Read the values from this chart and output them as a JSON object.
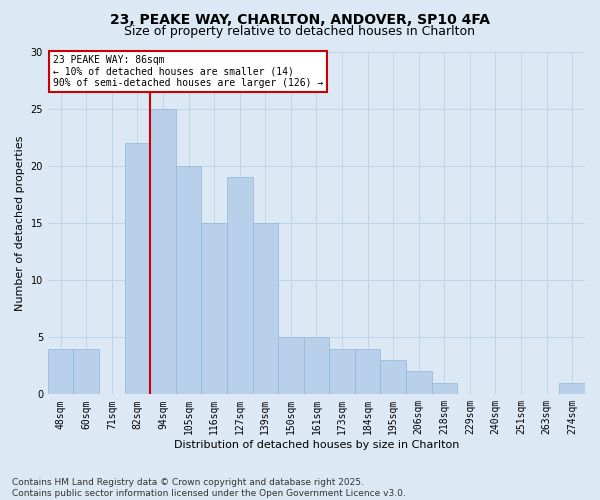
{
  "title1": "23, PEAKE WAY, CHARLTON, ANDOVER, SP10 4FA",
  "title2": "Size of property relative to detached houses in Charlton",
  "xlabel": "Distribution of detached houses by size in Charlton",
  "ylabel": "Number of detached properties",
  "categories": [
    "48sqm",
    "60sqm",
    "71sqm",
    "82sqm",
    "94sqm",
    "105sqm",
    "116sqm",
    "127sqm",
    "139sqm",
    "150sqm",
    "161sqm",
    "173sqm",
    "184sqm",
    "195sqm",
    "206sqm",
    "218sqm",
    "229sqm",
    "240sqm",
    "251sqm",
    "263sqm",
    "274sqm"
  ],
  "values": [
    4,
    4,
    0,
    22,
    25,
    20,
    15,
    19,
    15,
    5,
    5,
    4,
    4,
    3,
    2,
    1,
    0,
    0,
    0,
    0,
    1
  ],
  "bar_color": "#b8d0ea",
  "bar_edge_color": "#90b8d8",
  "annotation_text": "23 PEAKE WAY: 86sqm\n← 10% of detached houses are smaller (14)\n90% of semi-detached houses are larger (126) →",
  "annotation_box_color": "#ffffff",
  "annotation_box_edge": "#cc0000",
  "vline_color": "#cc0000",
  "ylim": [
    0,
    30
  ],
  "yticks": [
    0,
    5,
    10,
    15,
    20,
    25,
    30
  ],
  "grid_color": "#c0d4e8",
  "background_color": "#dce8f4",
  "footer": "Contains HM Land Registry data © Crown copyright and database right 2025.\nContains public sector information licensed under the Open Government Licence v3.0.",
  "title_fontsize": 10,
  "subtitle_fontsize": 9,
  "axis_label_fontsize": 8,
  "tick_fontsize": 7,
  "annot_fontsize": 7,
  "footer_fontsize": 6.5
}
